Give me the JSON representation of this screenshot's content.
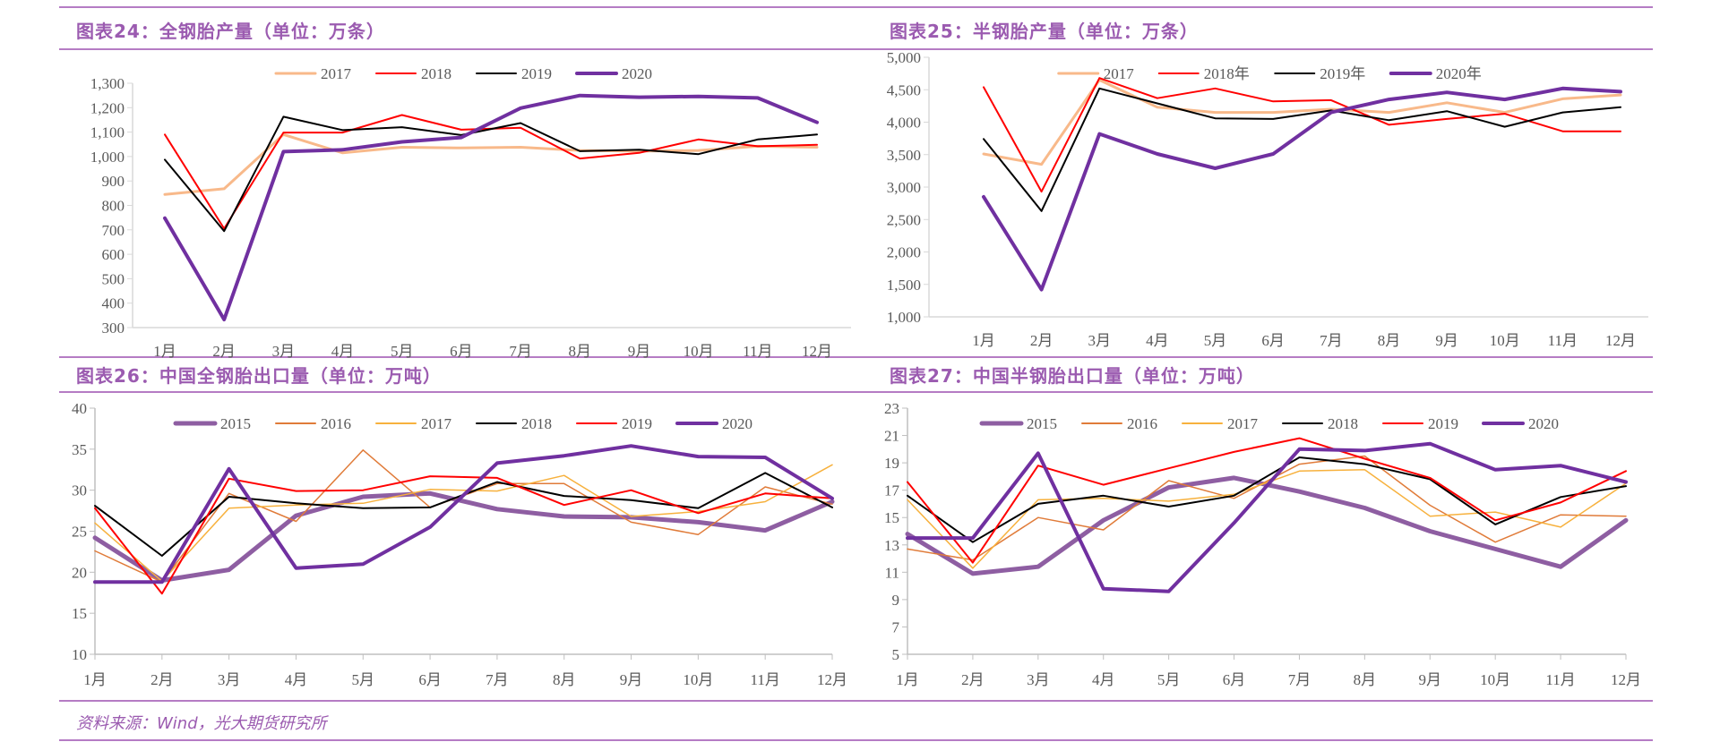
{
  "page": {
    "footer_source": "资料来源：Wind，光大期货研究所"
  },
  "colors": {
    "accent": "#b57cc4",
    "title_text": "#9b5bb0",
    "axis": "#d9d9d9",
    "tick_text": "#595959"
  },
  "chart_data": [
    {
      "id": "fig24",
      "type": "line",
      "title": "图表24：全钢胎产量（单位：万条）",
      "xlabel": "",
      "ylabel": "",
      "categories": [
        "1月",
        "2月",
        "3月",
        "4月",
        "5月",
        "6月",
        "7月",
        "8月",
        "9月",
        "10月",
        "11月",
        "12月"
      ],
      "ylim": [
        300,
        1300
      ],
      "yticks": [
        300,
        400,
        500,
        600,
        700,
        800,
        900,
        1000,
        1100,
        1200,
        1300
      ],
      "ytick_labels": [
        "300",
        "400",
        "500",
        "600",
        "700",
        "800",
        "900",
        "1,000",
        "1,100",
        "1,200",
        "1,300"
      ],
      "grid": false,
      "legend_position": "top-center",
      "series": [
        {
          "name": "2017",
          "color": "#f8b98a",
          "width": 3,
          "values": [
            845,
            868,
            1090,
            1015,
            1038,
            1035,
            1038,
            1025,
            1022,
            1025,
            1042,
            1038
          ]
        },
        {
          "name": "2018",
          "color": "#ff0000",
          "width": 2,
          "values": [
            1090,
            705,
            1098,
            1098,
            1170,
            1110,
            1118,
            992,
            1015,
            1070,
            1042,
            1048
          ]
        },
        {
          "name": "2019",
          "color": "#000000",
          "width": 2,
          "values": [
            987,
            695,
            1163,
            1108,
            1120,
            1088,
            1137,
            1022,
            1028,
            1010,
            1070,
            1090
          ]
        },
        {
          "name": "2020",
          "color": "#7030a0",
          "width": 4,
          "values": [
            748,
            333,
            1020,
            1028,
            1060,
            1078,
            1198,
            1250,
            1243,
            1246,
            1240,
            1140
          ]
        }
      ]
    },
    {
      "id": "fig25",
      "type": "line",
      "title": "图表25：半钢胎产量（单位：万条）",
      "xlabel": "",
      "ylabel": "",
      "categories": [
        "1月",
        "2月",
        "3月",
        "4月",
        "5月",
        "6月",
        "7月",
        "8月",
        "9月",
        "10月",
        "11月",
        "12月"
      ],
      "ylim": [
        1000,
        5000
      ],
      "yticks": [
        1000,
        1500,
        2000,
        2500,
        3000,
        3500,
        4000,
        4500,
        5000
      ],
      "ytick_labels": [
        "1,000",
        "1,500",
        "2,000",
        "2,500",
        "3,000",
        "3,500",
        "4,000",
        "4,500",
        "5,000"
      ],
      "grid": false,
      "legend_position": "top-center",
      "series": [
        {
          "name": "2017",
          "color": "#f8b98a",
          "width": 3,
          "values": [
            3510,
            3350,
            4650,
            4230,
            4150,
            4150,
            4200,
            4150,
            4300,
            4150,
            4360,
            4420
          ]
        },
        {
          "name": "2018年",
          "color": "#ff0000",
          "width": 2,
          "values": [
            4540,
            2930,
            4680,
            4370,
            4520,
            4320,
            4340,
            3960,
            4050,
            4130,
            3860,
            3860
          ]
        },
        {
          "name": "2019年",
          "color": "#000000",
          "width": 2,
          "values": [
            3740,
            2630,
            4520,
            4290,
            4060,
            4050,
            4180,
            4030,
            4170,
            3930,
            4150,
            4230
          ]
        },
        {
          "name": "2020年",
          "color": "#7030a0",
          "width": 4,
          "values": [
            2850,
            1420,
            3820,
            3510,
            3290,
            3510,
            4150,
            4350,
            4460,
            4350,
            4520,
            4470
          ]
        }
      ]
    },
    {
      "id": "fig26",
      "type": "line",
      "title": "图表26：中国全钢胎出口量（单位：万吨）",
      "xlabel": "",
      "ylabel": "",
      "categories": [
        "1月",
        "2月",
        "3月",
        "4月",
        "5月",
        "6月",
        "7月",
        "8月",
        "9月",
        "10月",
        "11月",
        "12月"
      ],
      "ylim": [
        10,
        40
      ],
      "yticks": [
        10,
        15,
        20,
        25,
        30,
        35,
        40
      ],
      "ytick_labels": [
        "10",
        "15",
        "20",
        "25",
        "30",
        "35",
        "40"
      ],
      "grid": false,
      "legend_position": "top-center",
      "series": [
        {
          "name": "2015",
          "color": "#8e5ea2",
          "width": 5,
          "values": [
            24.2,
            19.0,
            20.3,
            26.9,
            29.2,
            29.6,
            27.7,
            26.8,
            26.7,
            26.1,
            25.1,
            28.6
          ]
        },
        {
          "name": "2016",
          "color": "#e07b39",
          "width": 1.5,
          "values": [
            22.6,
            18.8,
            29.6,
            26.2,
            34.9,
            27.9,
            30.8,
            30.8,
            26.1,
            24.6,
            30.4,
            28.3
          ]
        },
        {
          "name": "2017",
          "color": "#f7b13d",
          "width": 1.5,
          "values": [
            26.0,
            18.9,
            27.8,
            28.2,
            28.4,
            30.1,
            29.9,
            31.8,
            26.8,
            27.4,
            28.6,
            33.1
          ]
        },
        {
          "name": "2018",
          "color": "#000000",
          "width": 2,
          "values": [
            28.1,
            22.0,
            29.2,
            28.4,
            27.8,
            27.9,
            31.0,
            29.3,
            28.8,
            27.8,
            32.1,
            27.9
          ]
        },
        {
          "name": "2019",
          "color": "#ff0000",
          "width": 2,
          "values": [
            27.8,
            17.4,
            31.4,
            29.9,
            30.0,
            31.7,
            31.5,
            28.2,
            30.0,
            27.2,
            29.6,
            29.0
          ]
        },
        {
          "name": "2020",
          "color": "#7030a0",
          "width": 4,
          "values": [
            18.8,
            18.8,
            32.6,
            20.5,
            21.0,
            25.5,
            33.3,
            34.2,
            35.4,
            34.1,
            34.0,
            29.0
          ]
        }
      ]
    },
    {
      "id": "fig27",
      "type": "line",
      "title": "图表27：中国半钢胎出口量（单位：万吨）",
      "xlabel": "",
      "ylabel": "",
      "categories": [
        "1月",
        "2月",
        "3月",
        "4月",
        "5月",
        "6月",
        "7月",
        "8月",
        "9月",
        "10月",
        "11月",
        "12月"
      ],
      "ylim": [
        5,
        23
      ],
      "yticks": [
        5,
        7,
        9,
        11,
        13,
        15,
        17,
        19,
        21,
        23
      ],
      "ytick_labels": [
        "5",
        "7",
        "9",
        "11",
        "13",
        "15",
        "17",
        "19",
        "21",
        "23"
      ],
      "grid": false,
      "legend_position": "top-center",
      "series": [
        {
          "name": "2015",
          "color": "#8e5ea2",
          "width": 5,
          "values": [
            13.8,
            10.9,
            11.4,
            14.8,
            17.2,
            17.9,
            16.9,
            15.7,
            14.0,
            12.7,
            11.4,
            14.8
          ]
        },
        {
          "name": "2016",
          "color": "#e07b39",
          "width": 1.5,
          "values": [
            12.7,
            11.9,
            15.0,
            14.1,
            17.7,
            16.4,
            18.9,
            19.5,
            15.9,
            13.2,
            15.2,
            15.1
          ]
        },
        {
          "name": "2017",
          "color": "#f7b13d",
          "width": 1.5,
          "values": [
            16.3,
            11.3,
            16.3,
            16.4,
            16.2,
            16.7,
            18.4,
            18.5,
            15.1,
            15.4,
            14.3,
            17.5
          ]
        },
        {
          "name": "2018",
          "color": "#000000",
          "width": 2,
          "values": [
            16.6,
            13.2,
            16.0,
            16.6,
            15.8,
            16.6,
            19.4,
            18.9,
            17.8,
            14.5,
            16.5,
            17.3
          ]
        },
        {
          "name": "2019",
          "color": "#ff0000",
          "width": 2,
          "values": [
            17.6,
            11.7,
            18.8,
            17.4,
            18.6,
            19.8,
            20.8,
            19.3,
            17.9,
            14.8,
            16.1,
            18.4
          ]
        },
        {
          "name": "2020",
          "color": "#7030a0",
          "width": 4,
          "values": [
            13.5,
            13.5,
            19.7,
            9.8,
            9.6,
            14.6,
            20.0,
            19.9,
            20.4,
            18.5,
            18.8,
            17.6
          ]
        }
      ]
    }
  ]
}
